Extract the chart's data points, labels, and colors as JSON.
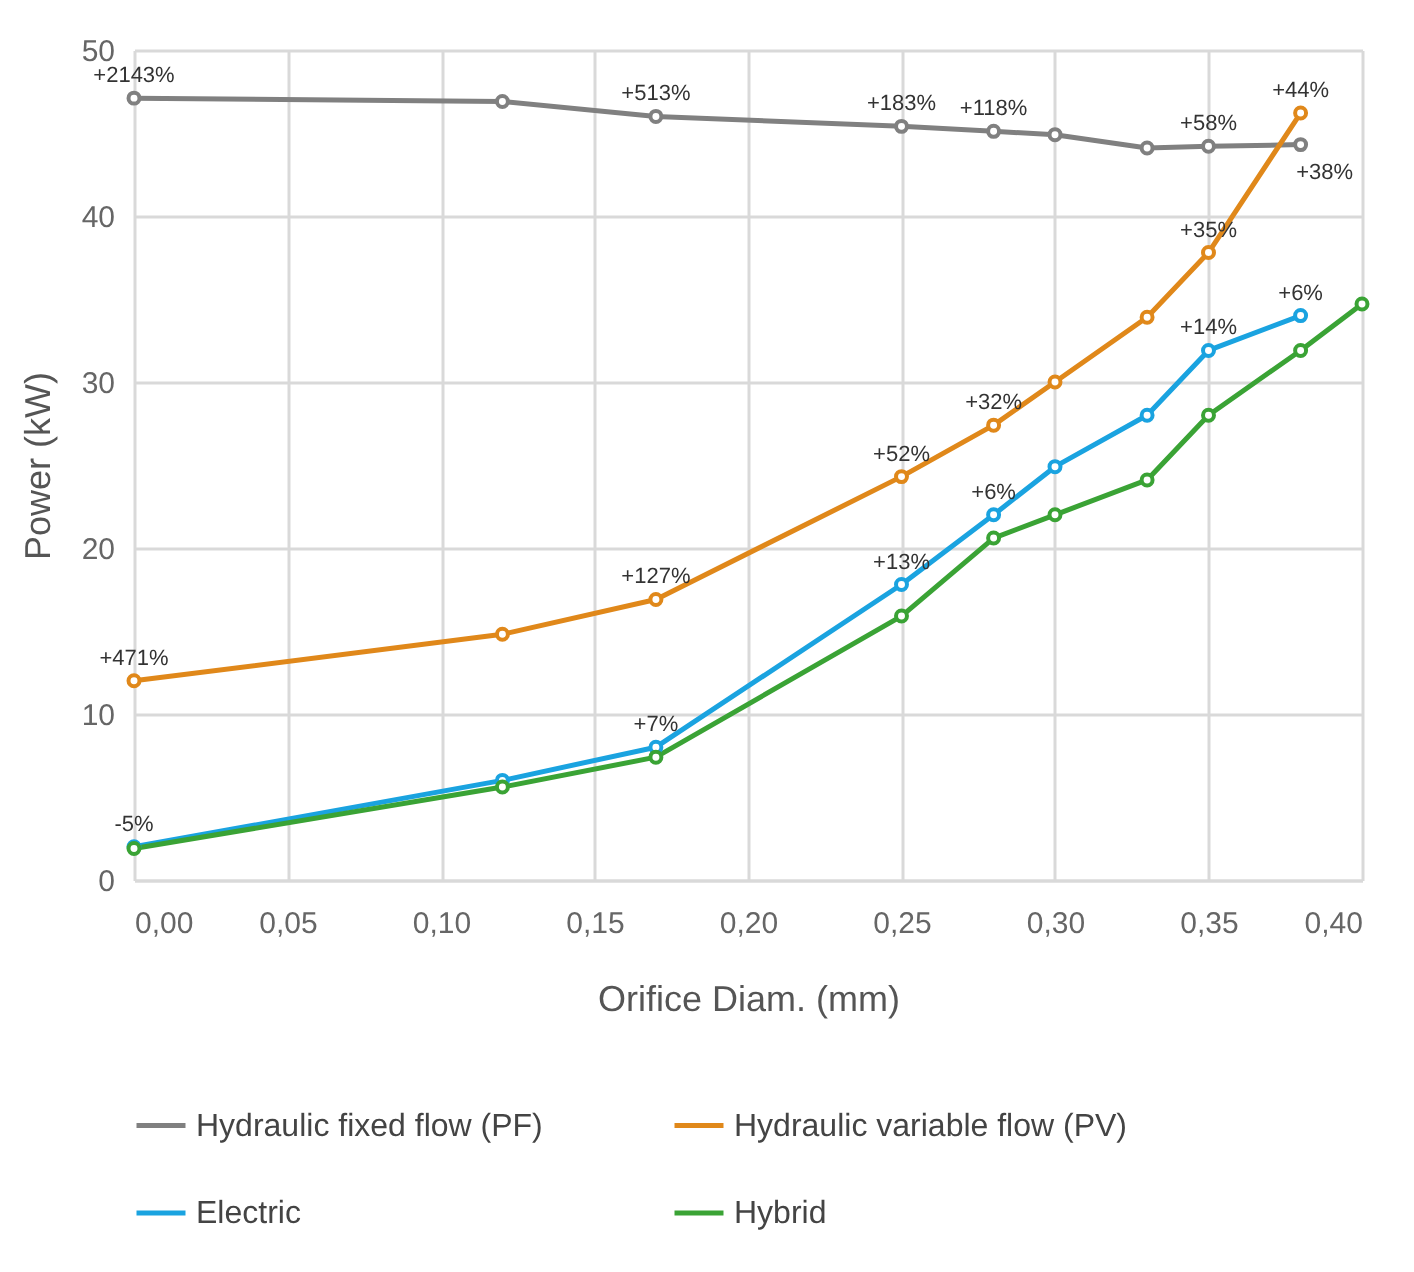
{
  "chart_data": {
    "type": "line",
    "xlabel": "Orifice Diam. (mm)",
    "ylabel": "Power (kW)",
    "xlim": [
      0,
      0.4
    ],
    "xticks": [
      {
        "value": 0,
        "label": "0,00"
      },
      {
        "value": 0.05,
        "label": "0,05"
      },
      {
        "value": 0.1,
        "label": "0,10"
      },
      {
        "value": 0.15,
        "label": "0,15"
      },
      {
        "value": 0.2,
        "label": "0,20"
      },
      {
        "value": 0.25,
        "label": "0,25"
      },
      {
        "value": 0.3,
        "label": "0,30"
      },
      {
        "value": 0.35,
        "label": "0,35"
      },
      {
        "value": 0.4,
        "label": "0,40"
      }
    ],
    "ylim": [
      0,
      50
    ],
    "yticks": [
      0,
      10,
      20,
      30,
      40,
      50
    ],
    "grid": true,
    "legend": "bottom",
    "marker": "circle",
    "line_style": "solid",
    "series": [
      {
        "name": "Hydraulic fixed flow (PF)",
        "color": "#808080",
        "x": [
          0,
          0.12,
          0.17,
          0.25,
          0.28,
          0.3,
          0.33,
          0.35,
          0.38
        ],
        "values": [
          47.1,
          46.9,
          46.0,
          45.4,
          45.1,
          44.9,
          44.1,
          44.2,
          44.3
        ]
      },
      {
        "name": "Hydraulic variable flow (PV)",
        "color": "#e0881a",
        "x": [
          0,
          0.12,
          0.17,
          0.25,
          0.28,
          0.3,
          0.33,
          0.35,
          0.38
        ],
        "values": [
          12.0,
          14.8,
          16.9,
          24.3,
          27.4,
          30.0,
          33.9,
          37.8,
          46.2
        ]
      },
      {
        "name": "Electric",
        "color": "#1aa3e0",
        "x": [
          0,
          0.12,
          0.17,
          0.25,
          0.28,
          0.3,
          0.33,
          0.35,
          0.38
        ],
        "values": [
          2.0,
          6.0,
          8.0,
          17.8,
          22.0,
          24.9,
          28.0,
          31.9,
          34.0
        ]
      },
      {
        "name": "Hybrid",
        "color": "#3aa335",
        "x": [
          0,
          0.12,
          0.17,
          0.25,
          0.28,
          0.3,
          0.33,
          0.35,
          0.38,
          0.4
        ],
        "values": [
          1.9,
          5.6,
          7.4,
          15.9,
          20.6,
          22.0,
          24.1,
          28.0,
          31.9,
          34.7
        ]
      }
    ],
    "annotations": [
      {
        "text": "+2143%",
        "x": 0,
        "y": 47.1
      },
      {
        "text": "+513%",
        "x": 0.17,
        "y": 46.0
      },
      {
        "text": "+183%",
        "x": 0.25,
        "y": 45.4
      },
      {
        "text": "+118%",
        "x": 0.28,
        "y": 45.1
      },
      {
        "text": "+58%",
        "x": 0.35,
        "y": 44.2
      },
      {
        "text": "+38%",
        "x": 0.38,
        "y": 44.3
      },
      {
        "text": "+471%",
        "x": 0,
        "y": 12.0
      },
      {
        "text": "+127%",
        "x": 0.17,
        "y": 16.9
      },
      {
        "text": "+52%",
        "x": 0.25,
        "y": 24.3
      },
      {
        "text": "+32%",
        "x": 0.28,
        "y": 27.4
      },
      {
        "text": "+35%",
        "x": 0.35,
        "y": 37.8
      },
      {
        "text": "+44%",
        "x": 0.38,
        "y": 46.2
      },
      {
        "text": "-5%",
        "x": 0,
        "y": 2.0
      },
      {
        "text": "+7%",
        "x": 0.17,
        "y": 8.0
      },
      {
        "text": "+13%",
        "x": 0.25,
        "y": 17.8
      },
      {
        "text": "+6%",
        "x": 0.28,
        "y": 22.0
      },
      {
        "text": "+14%",
        "x": 0.35,
        "y": 31.9
      },
      {
        "text": "+6%",
        "x": 0.38,
        "y": 34.0
      }
    ]
  }
}
